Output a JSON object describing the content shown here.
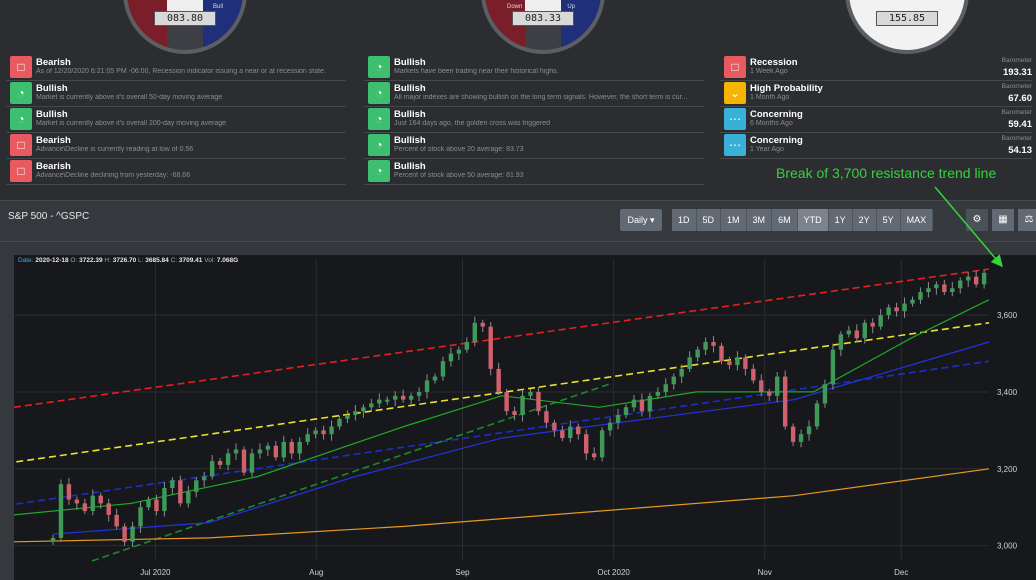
{
  "gauges": [
    {
      "value": "083.80",
      "left_label": "",
      "right_label": "Bull"
    },
    {
      "value": "083.33",
      "left_label": "Down",
      "right_label": "Up"
    },
    {
      "value": "155.85"
    }
  ],
  "signals_left": [
    {
      "title": "Bearish",
      "desc": "As of 12/20/2020 6:21:05 PM -06:00, Recession indicator issuing a near or at recession state.",
      "kind": "bear",
      "icon": "chat-icon"
    },
    {
      "title": "Bullish",
      "desc": "Market is currently above it's overall 50-day moving average",
      "kind": "bull",
      "icon": "gauge-icon"
    },
    {
      "title": "Bullish",
      "desc": "Market is currently above it's overall 200-day moving average",
      "kind": "bull",
      "icon": "gauge-icon"
    },
    {
      "title": "Bearish",
      "desc": "Advance\\Decline is currently reading at low of 0.56",
      "kind": "bear",
      "icon": "chat-icon"
    },
    {
      "title": "Bearish",
      "desc": "Advance\\Decline declining from yesterday: -68.66",
      "kind": "bear",
      "icon": "chat-icon"
    }
  ],
  "signals_mid": [
    {
      "title": "Bullish",
      "desc": "Markets have been trading near their historical highs.",
      "kind": "bull",
      "icon": "gauge-icon"
    },
    {
      "title": "Bullish",
      "desc": "All major indexes are showing bullish on the long term signals. However, the short term is cur...",
      "kind": "bull",
      "icon": "gauge-icon"
    },
    {
      "title": "Bullish",
      "desc": "Just 164 days ago, the golden cross was triggered",
      "kind": "bull",
      "icon": "gauge-icon"
    },
    {
      "title": "Bullish",
      "desc": "Percent of stock above 20 average: 83.73",
      "kind": "bull",
      "icon": "gauge-icon"
    },
    {
      "title": "Bullish",
      "desc": "Percent of stock above 50 average: 81.93",
      "kind": "bull",
      "icon": "gauge-icon"
    }
  ],
  "signals_right": [
    {
      "title": "Recession",
      "desc": "1 Week Ago",
      "kind": "bear",
      "icon": "chat-icon",
      "bar_label": "Barometer",
      "bar_value": "193.31"
    },
    {
      "title": "High Probability",
      "desc": "1 Month Ago",
      "kind": "warn",
      "icon": "chevron-down-icon",
      "bar_label": "Barometer",
      "bar_value": "67.60"
    },
    {
      "title": "Concerning",
      "desc": "6 Months Ago",
      "kind": "info",
      "icon": "dots-icon",
      "bar_label": "Barometer",
      "bar_value": "59.41"
    },
    {
      "title": "Concerning",
      "desc": "1 Year Ago",
      "kind": "info",
      "icon": "dots-icon",
      "bar_label": "Barometer",
      "bar_value": "54.13"
    }
  ],
  "annotation": "Break of 3,700 resistance trend line",
  "panel": {
    "title": "S&P 500 - ^GSPC",
    "interval": "Daily ▾",
    "ranges": [
      "1D",
      "5D",
      "1M",
      "3M",
      "6M",
      "YTD",
      "1Y",
      "2Y",
      "5Y",
      "MAX"
    ],
    "active_range": "YTD"
  },
  "ohlc": {
    "date_label": "Date:",
    "date": "2020-12-18",
    "o_label": "O:",
    "o": "3722.39",
    "h_label": "H:",
    "h": "3726.70",
    "l_label": "L:",
    "l": "3685.84",
    "c_label": "C:",
    "c": "3709.41",
    "v_label": "Vol:",
    "v": "7.068G"
  },
  "chart_data": {
    "type": "candlestick",
    "x_ticks": [
      "Jul 2020",
      "Aug",
      "Sep",
      "Oct 2020",
      "Nov",
      "Dec"
    ],
    "y_ticks": [
      3000,
      3200,
      3400,
      3600
    ],
    "y_tick_labels": [
      "3,000",
      "3,200",
      "3,400",
      "3,600"
    ],
    "ylim": [
      2960,
      3720
    ],
    "x_range": [
      "2020-06-11",
      "2020-12-18"
    ],
    "closes": [
      [
        3020,
        3160,
        3120,
        3110,
        3090,
        3130,
        3110,
        3080,
        3050,
        3010
      ],
      [
        3050,
        3100,
        3120,
        3090,
        3150,
        3170,
        3110,
        3140,
        3170,
        3180,
        3220,
        3210,
        3240,
        3250,
        3190,
        3240,
        3250,
        3260,
        3230,
        3270,
        3240,
        3270,
        3290,
        3300
      ],
      [
        3290,
        3310,
        3330,
        3340,
        3350,
        3360,
        3370,
        3380,
        3380,
        3390,
        3380,
        3390,
        3400,
        3430,
        3440,
        3480,
        3500,
        3510,
        3530,
        3580
      ],
      [
        3570,
        3460,
        3400,
        3350,
        3340,
        3390,
        3400,
        3350,
        3320,
        3300,
        3280,
        3310,
        3290,
        3240,
        3230,
        3300,
        3320,
        3340,
        3360,
        3380
      ],
      [
        3350,
        3390,
        3400,
        3420,
        3440,
        3460,
        3490,
        3510,
        3530,
        3520,
        3480,
        3470,
        3490,
        3460,
        3430,
        3400,
        3390,
        3440,
        3310,
        3270,
        3290,
        3310,
        3370,
        3420
      ],
      [
        3510,
        3550,
        3560,
        3540,
        3580,
        3570,
        3600,
        3620,
        3610,
        3630,
        3640,
        3660,
        3670,
        3680,
        3660,
        3670,
        3690,
        3700,
        3680,
        3710
      ]
    ],
    "series": [
      {
        "kind": "ma50",
        "color": "#1ea82a",
        "points": [
          [
            0,
            3080
          ],
          [
            0.12,
            3110
          ],
          [
            0.25,
            3180
          ],
          [
            0.4,
            3310
          ],
          [
            0.5,
            3390
          ],
          [
            0.6,
            3360
          ],
          [
            0.7,
            3400
          ],
          [
            0.82,
            3400
          ],
          [
            0.92,
            3540
          ],
          [
            1,
            3640
          ]
        ]
      },
      {
        "kind": "ma100",
        "color": "#2233dd",
        "points": [
          [
            0.04,
            3030
          ],
          [
            0.2,
            3060
          ],
          [
            0.35,
            3180
          ],
          [
            0.5,
            3280
          ],
          [
            0.65,
            3330
          ],
          [
            0.8,
            3380
          ],
          [
            1,
            3530
          ]
        ]
      },
      {
        "kind": "ma200",
        "color": "#e59a20",
        "points": [
          [
            0,
            3010
          ],
          [
            0.2,
            3020
          ],
          [
            0.4,
            3050
          ],
          [
            0.6,
            3090
          ],
          [
            0.8,
            3130
          ],
          [
            1,
            3200
          ]
        ]
      }
    ],
    "trend_lines": [
      {
        "color": "#e62020",
        "from": [
          0,
          3360
        ],
        "to": [
          1,
          3720
        ]
      },
      {
        "color": "#e8e22e",
        "from": [
          -0.02,
          3210
        ],
        "to": [
          1,
          3580
        ]
      },
      {
        "color": "#1b2fc8",
        "from": [
          -0.02,
          3100
        ],
        "to": [
          1,
          3480
        ]
      },
      {
        "color": "#1b8a2a",
        "from": [
          0.08,
          2960
        ],
        "to": [
          0.61,
          3420
        ]
      }
    ]
  }
}
